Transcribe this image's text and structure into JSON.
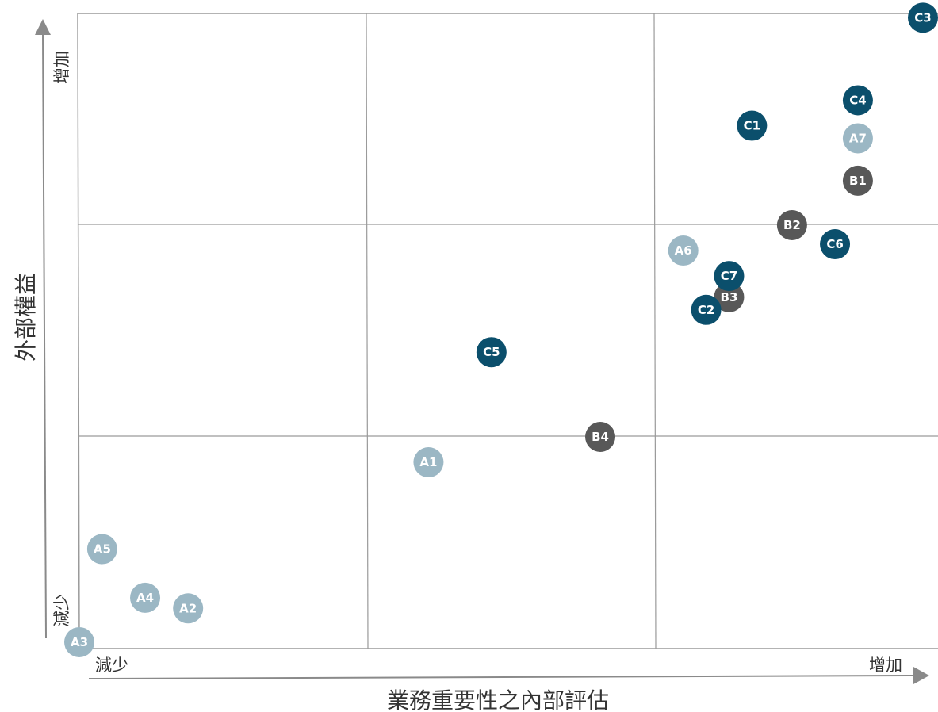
{
  "colors": {
    "A": "#9bb7c4",
    "B": "#585858",
    "C": "#0b4f6c",
    "grid": "#9a9a9a",
    "axis_arrow": "#8a8a8a"
  },
  "chart_data": {
    "type": "scatter",
    "title": "",
    "xlabel": "業務重要性之內部評估",
    "ylabel": "外部權益",
    "x_low_label": "減少",
    "x_high_label": "增加",
    "y_low_label": "減少",
    "y_high_label": "增加",
    "xlim": [
      0,
      3
    ],
    "ylim": [
      0,
      3
    ],
    "grid": "3x3",
    "points": [
      {
        "label": "A1",
        "group": "A",
        "x": 1.22,
        "y": 0.88
      },
      {
        "label": "A2",
        "group": "A",
        "x": 0.38,
        "y": 0.19
      },
      {
        "label": "A3",
        "group": "A",
        "x": 0.0,
        "y": 0.03
      },
      {
        "label": "A4",
        "group": "A",
        "x": 0.23,
        "y": 0.24
      },
      {
        "label": "A5",
        "group": "A",
        "x": 0.08,
        "y": 0.47
      },
      {
        "label": "A6",
        "group": "A",
        "x": 2.11,
        "y": 1.88
      },
      {
        "label": "A7",
        "group": "A",
        "x": 2.72,
        "y": 2.41
      },
      {
        "label": "B1",
        "group": "B",
        "x": 2.72,
        "y": 2.21
      },
      {
        "label": "B2",
        "group": "B",
        "x": 2.49,
        "y": 2.0
      },
      {
        "label": "B3",
        "group": "B",
        "x": 2.27,
        "y": 1.66
      },
      {
        "label": "B4",
        "group": "B",
        "x": 1.82,
        "y": 1.0
      },
      {
        "label": "C1",
        "group": "C",
        "x": 2.35,
        "y": 2.47
      },
      {
        "label": "C2",
        "group": "C",
        "x": 2.19,
        "y": 1.6
      },
      {
        "label": "C3",
        "group": "C",
        "x": 2.99,
        "y": 2.98
      },
      {
        "label": "C4",
        "group": "C",
        "x": 2.72,
        "y": 2.59
      },
      {
        "label": "C5",
        "group": "C",
        "x": 1.44,
        "y": 1.4
      },
      {
        "label": "C6",
        "group": "C",
        "x": 2.64,
        "y": 1.91
      },
      {
        "label": "C7",
        "group": "C",
        "x": 2.27,
        "y": 1.76
      }
    ]
  }
}
